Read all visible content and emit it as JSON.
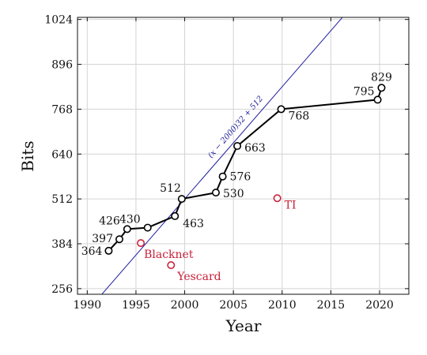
{
  "chart_data": {
    "type": "line",
    "xlabel": "Year",
    "ylabel": "Bits",
    "xlim": [
      1989,
      2023
    ],
    "ylim": [
      240,
      1030
    ],
    "xticks": [
      1990,
      1995,
      2000,
      2005,
      2010,
      2015,
      2020
    ],
    "yticks": [
      256,
      384,
      512,
      640,
      768,
      896,
      1024
    ],
    "grid": true,
    "series": [
      {
        "color": "#000000",
        "points": [
          {
            "x": 1992.2,
            "y": 364,
            "label": "364"
          },
          {
            "x": 1993.3,
            "y": 397,
            "label": "397"
          },
          {
            "x": 1994.1,
            "y": 426,
            "label": "426"
          },
          {
            "x": 1996.2,
            "y": 430,
            "label": "430"
          },
          {
            "x": 1999.0,
            "y": 463,
            "label": "463"
          },
          {
            "x": 1999.7,
            "y": 512,
            "label": "512"
          },
          {
            "x": 2003.2,
            "y": 530,
            "label": "530"
          },
          {
            "x": 2003.9,
            "y": 576,
            "label": "576"
          },
          {
            "x": 2005.4,
            "y": 663,
            "label": "663"
          },
          {
            "x": 2009.9,
            "y": 768,
            "label": "768"
          },
          {
            "x": 2019.8,
            "y": 795,
            "label": "795"
          },
          {
            "x": 2020.2,
            "y": 829,
            "label": "829"
          }
        ]
      }
    ],
    "standalone_points": [
      {
        "x": 1995.5,
        "y": 386,
        "label": "Blacknet",
        "color": "#c8213a"
      },
      {
        "x": 1998.6,
        "y": 323,
        "label": "Yescard",
        "color": "#c8213a"
      },
      {
        "x": 2009.5,
        "y": 514,
        "label": "TI",
        "color": "#c8213a"
      }
    ],
    "fit_line": {
      "label": "(x − 2000)32 + 512",
      "slope": 32,
      "x0": 2000,
      "y0": 512,
      "color": "#1f1f9e"
    }
  }
}
